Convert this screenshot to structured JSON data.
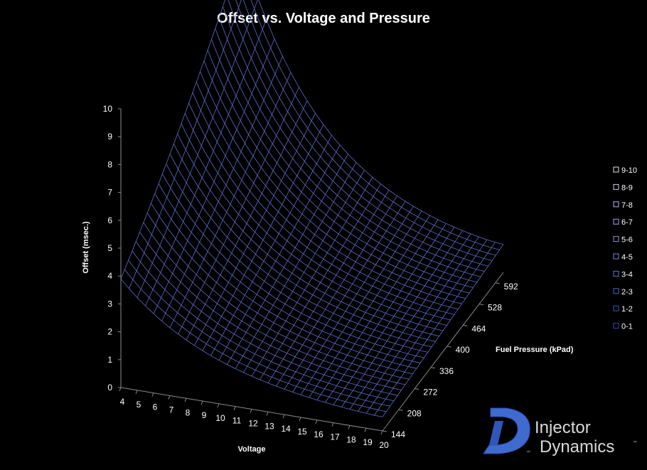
{
  "chart_data": {
    "type": "surface",
    "title": "Offset vs. Voltage and Pressure",
    "xlabel": "Voltage",
    "ylabel": "Fuel Pressure (kPad)",
    "zlabel": "Offset (msec.)",
    "x_ticks": [
      "4",
      "5",
      "6",
      "7",
      "8",
      "9",
      "10",
      "11",
      "12",
      "13",
      "14",
      "15",
      "16",
      "17",
      "18",
      "19",
      "20"
    ],
    "y_ticks": [
      "144",
      "208",
      "272",
      "336",
      "400",
      "464",
      "528",
      "592"
    ],
    "z_ticks": [
      "0",
      "1",
      "2",
      "3",
      "4",
      "5",
      "6",
      "7",
      "8",
      "9",
      "10"
    ],
    "zlim": [
      0,
      10
    ],
    "x_range": [
      4,
      20
    ],
    "y_range": [
      144,
      624
    ],
    "corner_values": {
      "v4_p144": 3.9,
      "v20_p144": 0.5,
      "v20_p624": 1.0,
      "v4_p624": 10.0
    },
    "legend": {
      "placement": "right",
      "entries": [
        "9-10",
        "8-9",
        "7-8",
        "6-7",
        "5-6",
        "4-5",
        "3-4",
        "2-3",
        "1-2",
        "0-1"
      ],
      "colors": [
        "#e6e6e6",
        "#c9cfea",
        "#b3bde6",
        "#9ea9e0",
        "#8a96da",
        "#7784d4",
        "#6573cc",
        "#5462c4",
        "#4551bb",
        "#3742b2"
      ]
    },
    "surface_color": "#5b6fc8",
    "grid": true
  },
  "logo": {
    "line1": "Injector",
    "line2": "Dynamics",
    "mark": "™",
    "mark_icon": "id-logo-icon",
    "color": "#3f6bd1"
  }
}
